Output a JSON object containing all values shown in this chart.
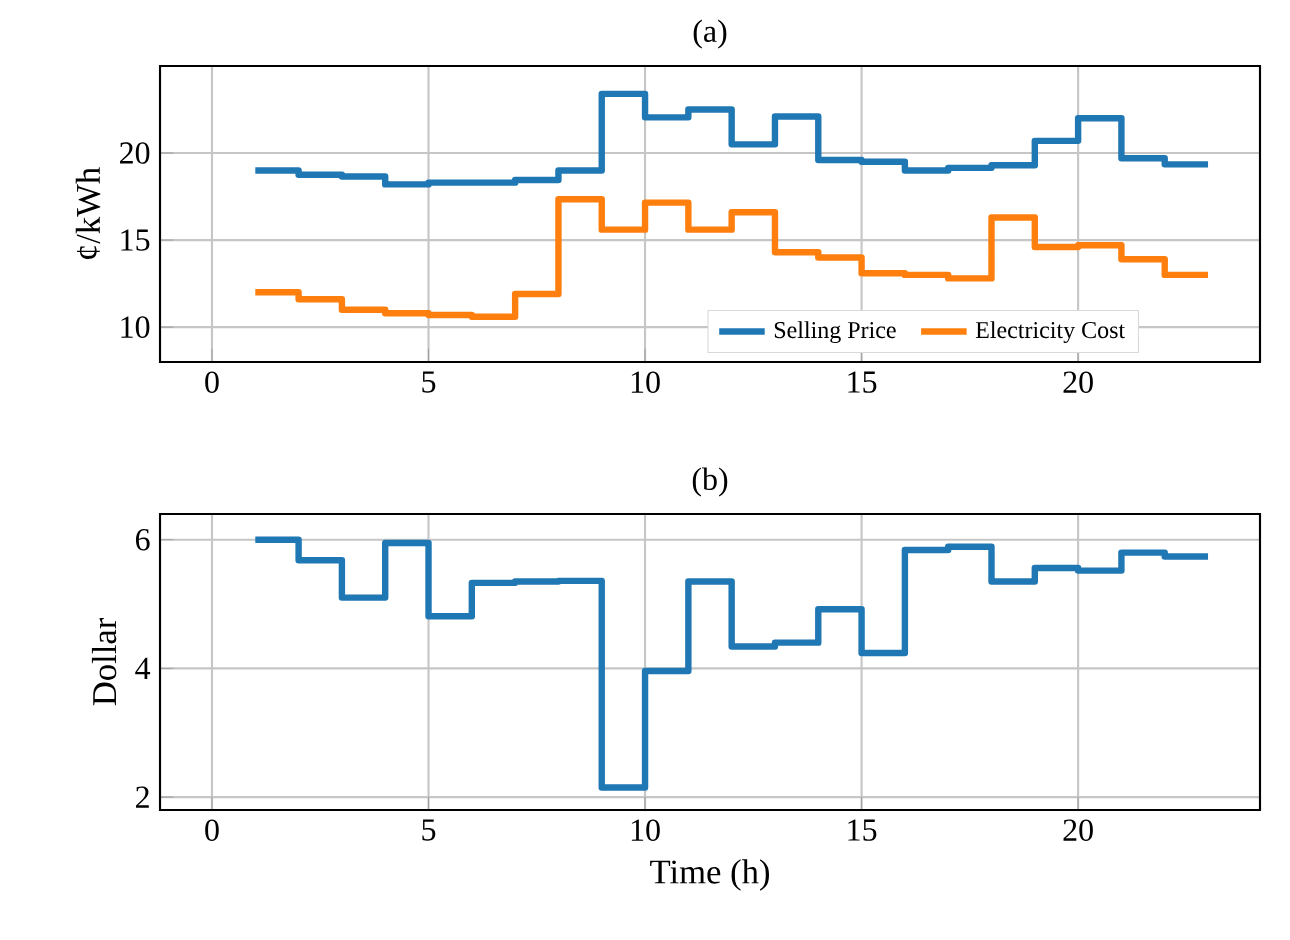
{
  "chart_data": [
    {
      "type": "step",
      "title": "(a)",
      "ylabel": "¢/kWh",
      "xlim": [
        -1.2,
        24.2
      ],
      "ylim": [
        8,
        25
      ],
      "xticks": [
        0,
        5,
        10,
        15,
        20
      ],
      "yticks": [
        10,
        15,
        20
      ],
      "grid": true,
      "legend": "bottom right",
      "x": [
        1,
        2,
        3,
        4,
        5,
        6,
        7,
        8,
        9,
        10,
        11,
        12,
        13,
        14,
        15,
        16,
        17,
        18,
        19,
        20,
        21,
        22,
        23
      ],
      "series": [
        {
          "name": "Selling Price",
          "color": "#1f77b4",
          "values": [
            19.0,
            18.75,
            18.65,
            18.2,
            18.3,
            18.3,
            18.45,
            19.0,
            23.4,
            22.05,
            22.5,
            20.5,
            22.1,
            19.6,
            19.5,
            19.0,
            19.15,
            19.3,
            20.7,
            22.0,
            19.7,
            19.35,
            19.35
          ]
        },
        {
          "name": "Electricity Cost",
          "color": "#ff7f0e",
          "values": [
            12.0,
            11.6,
            11.0,
            10.8,
            10.7,
            10.6,
            11.9,
            17.35,
            15.6,
            17.15,
            15.6,
            16.6,
            14.3,
            14.0,
            13.1,
            13.0,
            12.8,
            16.3,
            14.6,
            14.7,
            13.9,
            13.0,
            13.0
          ]
        }
      ]
    },
    {
      "type": "step",
      "title": "(b)",
      "xlabel": "Time (h)",
      "ylabel": "Dollar",
      "xlim": [
        -1.2,
        24.2
      ],
      "ylim": [
        1.8,
        6.4
      ],
      "xticks": [
        0,
        5,
        10,
        15,
        20
      ],
      "yticks": [
        2,
        4,
        6
      ],
      "grid": true,
      "x": [
        1,
        2,
        3,
        4,
        5,
        6,
        7,
        8,
        9,
        10,
        11,
        12,
        13,
        14,
        15,
        16,
        17,
        18,
        19,
        20,
        21,
        22,
        23
      ],
      "series": [
        {
          "color": "#1f77b4",
          "values": [
            6.0,
            5.68,
            5.1,
            5.95,
            4.81,
            5.33,
            5.35,
            5.36,
            2.15,
            3.96,
            5.35,
            4.34,
            4.4,
            4.92,
            4.24,
            5.84,
            5.89,
            5.35,
            5.56,
            5.52,
            5.8,
            5.74,
            5.74
          ]
        }
      ]
    }
  ]
}
